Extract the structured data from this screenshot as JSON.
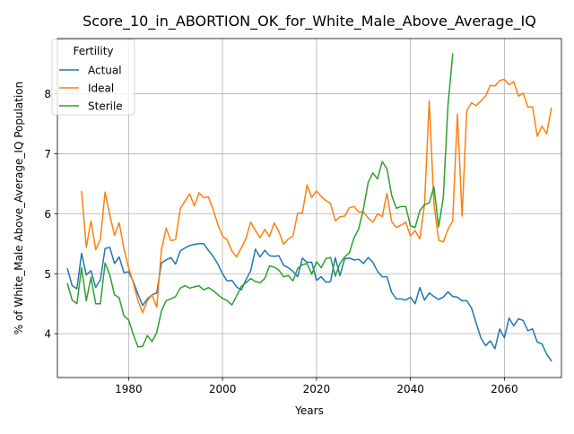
{
  "chart_data": {
    "type": "line",
    "title": "Score_10_in_ABORTION_OK_for_White_Male_Above_Average_IQ",
    "xlabel": "Years",
    "ylabel": "% of White_Male Above_Average_IQ Population",
    "xlim": [
      1964.85,
      2072.15
    ],
    "ylim": [
      3.27,
      8.92
    ],
    "xticks": [
      1980,
      2000,
      2020,
      2040,
      2060
    ],
    "yticks": [
      4,
      5,
      6,
      7,
      8
    ],
    "grid": true,
    "legend": {
      "title": "Fertility",
      "placement": "top-left"
    },
    "series": [
      {
        "name": "Actual",
        "color": "#1f77b4",
        "x": [
          1967,
          1968,
          1969,
          1970,
          1971,
          1972,
          1973,
          1974,
          1975,
          1976,
          1977,
          1978,
          1979,
          1980,
          1981,
          1982,
          1983,
          1984,
          1985,
          1986,
          1987,
          1988,
          1989,
          1990,
          1991,
          1992,
          1993,
          1994,
          1995,
          1996,
          1997,
          1998,
          1999,
          2000,
          2001,
          2002,
          2003,
          2004,
          2005,
          2006,
          2007,
          2008,
          2009,
          2010,
          2011,
          2012,
          2013,
          2014,
          2015,
          2016,
          2017,
          2018,
          2019,
          2020,
          2021,
          2022,
          2023,
          2024,
          2025,
          2026,
          2027,
          2028,
          2029,
          2030,
          2031,
          2032,
          2033,
          2034,
          2035,
          2036,
          2037,
          2038,
          2039,
          2040,
          2041,
          2042,
          2043,
          2044,
          2045,
          2046,
          2047,
          2048,
          2049,
          2050,
          2051,
          2052,
          2053,
          2054,
          2055,
          2056,
          2057,
          2058,
          2059,
          2060,
          2061,
          2062,
          2063,
          2064,
          2065,
          2066,
          2067,
          2068,
          2069,
          2070
        ],
        "values": [
          5.08,
          4.8,
          4.75,
          5.34,
          4.98,
          5.05,
          4.77,
          4.9,
          5.42,
          5.44,
          5.17,
          5.28,
          5.02,
          5.03,
          4.87,
          4.66,
          4.47,
          4.58,
          4.65,
          4.68,
          5.18,
          5.23,
          5.27,
          5.16,
          5.38,
          5.43,
          5.47,
          5.49,
          5.5,
          5.5,
          5.39,
          5.29,
          5.16,
          5.0,
          4.88,
          4.89,
          4.78,
          4.73,
          4.9,
          5.05,
          5.41,
          5.28,
          5.39,
          5.3,
          5.29,
          5.3,
          5.14,
          5.1,
          5.04,
          4.95,
          5.26,
          5.19,
          5.19,
          4.89,
          4.95,
          4.86,
          4.87,
          5.27,
          4.97,
          5.25,
          5.26,
          5.23,
          5.24,
          5.17,
          5.27,
          5.19,
          5.04,
          4.95,
          4.95,
          4.69,
          4.58,
          4.58,
          4.56,
          4.61,
          4.5,
          4.77,
          4.56,
          4.68,
          4.62,
          4.57,
          4.61,
          4.7,
          4.62,
          4.61,
          4.55,
          4.55,
          4.43,
          4.18,
          3.93,
          3.8,
          3.88,
          3.75,
          4.08,
          3.93,
          4.26,
          4.13,
          4.25,
          4.22,
          4.05,
          4.08,
          3.86,
          3.83,
          3.66,
          3.55
        ]
      },
      {
        "name": "Ideal",
        "color": "#ff7f0e",
        "x": [
          1970,
          1971,
          1972,
          1973,
          1974,
          1975,
          1976,
          1977,
          1978,
          1979,
          1980,
          1981,
          1982,
          1983,
          1984,
          1985,
          1986,
          1987,
          1988,
          1989,
          1990,
          1991,
          1992,
          1993,
          1994,
          1995,
          1996,
          1997,
          1998,
          1999,
          2000,
          2001,
          2002,
          2003,
          2004,
          2005,
          2006,
          2007,
          2008,
          2009,
          2010,
          2011,
          2012,
          2013,
          2014,
          2015,
          2016,
          2017,
          2018,
          2019,
          2020,
          2021,
          2022,
          2023,
          2024,
          2025,
          2026,
          2027,
          2028,
          2029,
          2030,
          2031,
          2032,
          2033,
          2034,
          2035,
          2036,
          2037,
          2038,
          2039,
          2040,
          2041,
          2042,
          2043,
          2044,
          2045,
          2046,
          2047,
          2048,
          2049,
          2050,
          2051,
          2052,
          2053,
          2054,
          2055,
          2056,
          2057,
          2058,
          2059,
          2060,
          2061,
          2062,
          2063,
          2064,
          2065,
          2066,
          2067,
          2068,
          2069,
          2070
        ],
        "values": [
          6.37,
          5.44,
          5.88,
          5.4,
          5.57,
          6.36,
          5.98,
          5.64,
          5.85,
          5.42,
          5.1,
          4.85,
          4.55,
          4.35,
          4.55,
          4.65,
          4.44,
          5.4,
          5.76,
          5.55,
          5.57,
          6.08,
          6.21,
          6.33,
          6.13,
          6.35,
          6.27,
          6.28,
          6.07,
          5.82,
          5.63,
          5.56,
          5.38,
          5.28,
          5.43,
          5.59,
          5.86,
          5.72,
          5.6,
          5.74,
          5.62,
          5.85,
          5.7,
          5.49,
          5.58,
          5.63,
          6.01,
          6.01,
          6.48,
          6.27,
          6.38,
          6.29,
          6.22,
          6.17,
          5.88,
          5.95,
          5.96,
          6.1,
          6.12,
          6.03,
          6.03,
          5.93,
          5.86,
          6.0,
          5.95,
          6.34,
          5.87,
          5.77,
          5.81,
          5.86,
          5.63,
          5.72,
          5.58,
          6.15,
          7.88,
          6.17,
          5.56,
          5.53,
          5.74,
          5.88,
          7.66,
          5.96,
          7.72,
          7.85,
          7.8,
          7.88,
          7.96,
          8.14,
          8.13,
          8.22,
          8.24,
          8.15,
          8.2,
          7.96,
          8.01,
          7.78,
          7.78,
          7.29,
          7.46,
          7.33,
          7.76
        ]
      },
      {
        "name": "Sterile",
        "color": "#2ca02c",
        "x": [
          1967,
          1968,
          1969,
          1970,
          1971,
          1972,
          1973,
          1974,
          1975,
          1976,
          1977,
          1978,
          1979,
          1980,
          1981,
          1982,
          1983,
          1984,
          1985,
          1986,
          1987,
          1988,
          1989,
          1990,
          1991,
          1992,
          1993,
          1994,
          1995,
          1996,
          1997,
          1998,
          1999,
          2000,
          2001,
          2002,
          2003,
          2004,
          2005,
          2006,
          2007,
          2008,
          2009,
          2010,
          2011,
          2012,
          2013,
          2014,
          2015,
          2016,
          2017,
          2018,
          2019,
          2020,
          2021,
          2022,
          2023,
          2024,
          2025,
          2026,
          2027,
          2028,
          2029,
          2030,
          2031,
          2032,
          2033,
          2034,
          2035,
          2036,
          2037,
          2038,
          2039,
          2040,
          2041,
          2042,
          2043,
          2044,
          2045,
          2046,
          2047,
          2048,
          2049
        ],
        "values": [
          4.83,
          4.56,
          4.5,
          5.1,
          4.55,
          4.94,
          4.5,
          4.5,
          5.18,
          4.98,
          4.65,
          4.6,
          4.3,
          4.23,
          3.99,
          3.78,
          3.79,
          3.97,
          3.87,
          4.02,
          4.38,
          4.55,
          4.58,
          4.62,
          4.76,
          4.8,
          4.76,
          4.78,
          4.8,
          4.73,
          4.77,
          4.72,
          4.65,
          4.59,
          4.55,
          4.48,
          4.63,
          4.79,
          4.85,
          4.92,
          4.87,
          4.85,
          4.92,
          5.13,
          5.11,
          5.06,
          4.95,
          4.97,
          4.88,
          5.09,
          5.15,
          5.17,
          4.99,
          5.2,
          5.1,
          5.25,
          5.27,
          4.96,
          5.17,
          5.28,
          5.35,
          5.6,
          5.75,
          6.08,
          6.52,
          6.68,
          6.58,
          6.87,
          6.75,
          6.31,
          6.09,
          6.12,
          6.12,
          5.8,
          5.77,
          6.05,
          6.15,
          6.18,
          6.45,
          5.78,
          6.27,
          7.81,
          8.66
        ]
      }
    ]
  }
}
